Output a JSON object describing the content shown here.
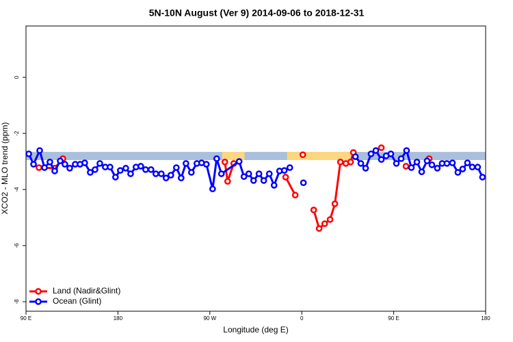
{
  "chart_data": {
    "type": "line",
    "title": "5N-10N August (Ver 9)   2014-09-06 to 2018-12-31",
    "x_label": "Longitude (deg E)",
    "y_label": "XCO2 - MLO trend (ppm)",
    "xlim": [
      90,
      540
    ],
    "ylim": [
      -8.34,
      1.83
    ],
    "xticks": [
      {
        "value": 90,
        "label": "90 E"
      },
      {
        "value": 180,
        "label": "180"
      },
      {
        "value": 270,
        "label": "90 W"
      },
      {
        "value": 360,
        "label": "0"
      },
      {
        "value": 450,
        "label": "90 E"
      },
      {
        "value": 540,
        "label": "180"
      }
    ],
    "yticks": [
      0,
      -2,
      -4,
      -6,
      -8
    ],
    "legend": "bottom-left",
    "band": {
      "lower": -2.95,
      "upper": -2.66,
      "color": "#a9bfdc",
      "highlight_color": "#fcd77f",
      "highlights": [
        [
          282,
          304
        ],
        [
          345.6,
          409
        ]
      ]
    },
    "series": [
      {
        "name": "Land (Nadir&Glint)",
        "color": "#ff0000",
        "x": [
          102.7,
          118.1,
          126.1,
          null,
          284.7,
          287.4,
          293.4,
          null,
          344.2,
          353.6,
          null,
          361.0,
          null,
          371.7,
          377.0,
          382.4,
          387.7,
          392.4,
          397.8,
          403.1,
          407.8,
          410.5,
          null,
          437.9,
          null,
          462.0,
          null,
          484.7
        ],
        "values": [
          -3.22,
          -3.24,
          -2.9,
          null,
          -3.02,
          -3.71,
          -3.07,
          null,
          -3.56,
          -4.2,
          null,
          -2.76,
          null,
          -4.73,
          -5.39,
          -5.22,
          -5.07,
          -4.51,
          -3.02,
          -3.07,
          -3.02,
          -2.68,
          null,
          -2.51,
          null,
          -3.17,
          null,
          -2.9
        ]
      },
      {
        "name": "Ocean (Glint)",
        "color": "#0000ff",
        "x": [
          92.7,
          97.4,
          103.4,
          108.1,
          113.4,
          118.1,
          123.5,
          128.1,
          132.8,
          138.2,
          142.9,
          147.5,
          152.9,
          157.6,
          162.3,
          167.6,
          172.3,
          177.6,
          182.3,
          187.7,
          192.4,
          197.7,
          202.4,
          207.1,
          212.4,
          217.1,
          222.5,
          227.1,
          231.8,
          237.2,
          241.9,
          246.6,
          251.9,
          257.3,
          261.9,
          266.6,
          272.7,
          276.7,
          281.3,
          298.7,
          303.4,
          308.1,
          312.8,
          318.1,
          322.8,
          328.2,
          332.9,
          338.2,
          342.9,
          348.3,
          null,
          361.6,
          null,
          412.5,
          417.8,
          422.5,
          427.8,
          432.5,
          437.9,
          442.6,
          447.2,
          452.6,
          457.3,
          462.6,
          467.3,
          472.7,
          477.4,
          482.7,
          487.4,
          492.7,
          497.4,
          502.1,
          507.5,
          512.8,
          517.5,
          522.2,
          526.9,
          532.2,
          536.9
        ],
        "values": [
          -2.73,
          -3.1,
          -2.61,
          -3.22,
          -3.02,
          -3.34,
          -2.98,
          -3.1,
          -3.24,
          -3.1,
          -3.1,
          -3.05,
          -3.39,
          -3.29,
          -3.07,
          -3.2,
          -3.2,
          -3.56,
          -3.32,
          -3.24,
          -3.44,
          -3.2,
          -3.17,
          -3.29,
          -3.29,
          -3.44,
          -3.44,
          -3.59,
          -3.49,
          -3.22,
          -3.59,
          -3.07,
          -3.39,
          -3.07,
          -3.05,
          -3.1,
          -3.98,
          -2.9,
          -3.44,
          -3.0,
          -3.54,
          -3.44,
          -3.68,
          -3.44,
          -3.68,
          -3.44,
          -3.85,
          -3.34,
          -3.32,
          -3.22,
          null,
          -3.76,
          null,
          -2.83,
          -3.07,
          -3.24,
          -2.73,
          -2.61,
          -2.93,
          -2.8,
          -2.73,
          -3.07,
          -2.9,
          -2.61,
          -3.22,
          -3.02,
          -3.37,
          -2.98,
          -3.12,
          -3.24,
          -3.07,
          -3.07,
          -3.05,
          -3.39,
          -3.27,
          -3.05,
          -3.2,
          -3.2,
          -3.56
        ]
      }
    ]
  }
}
